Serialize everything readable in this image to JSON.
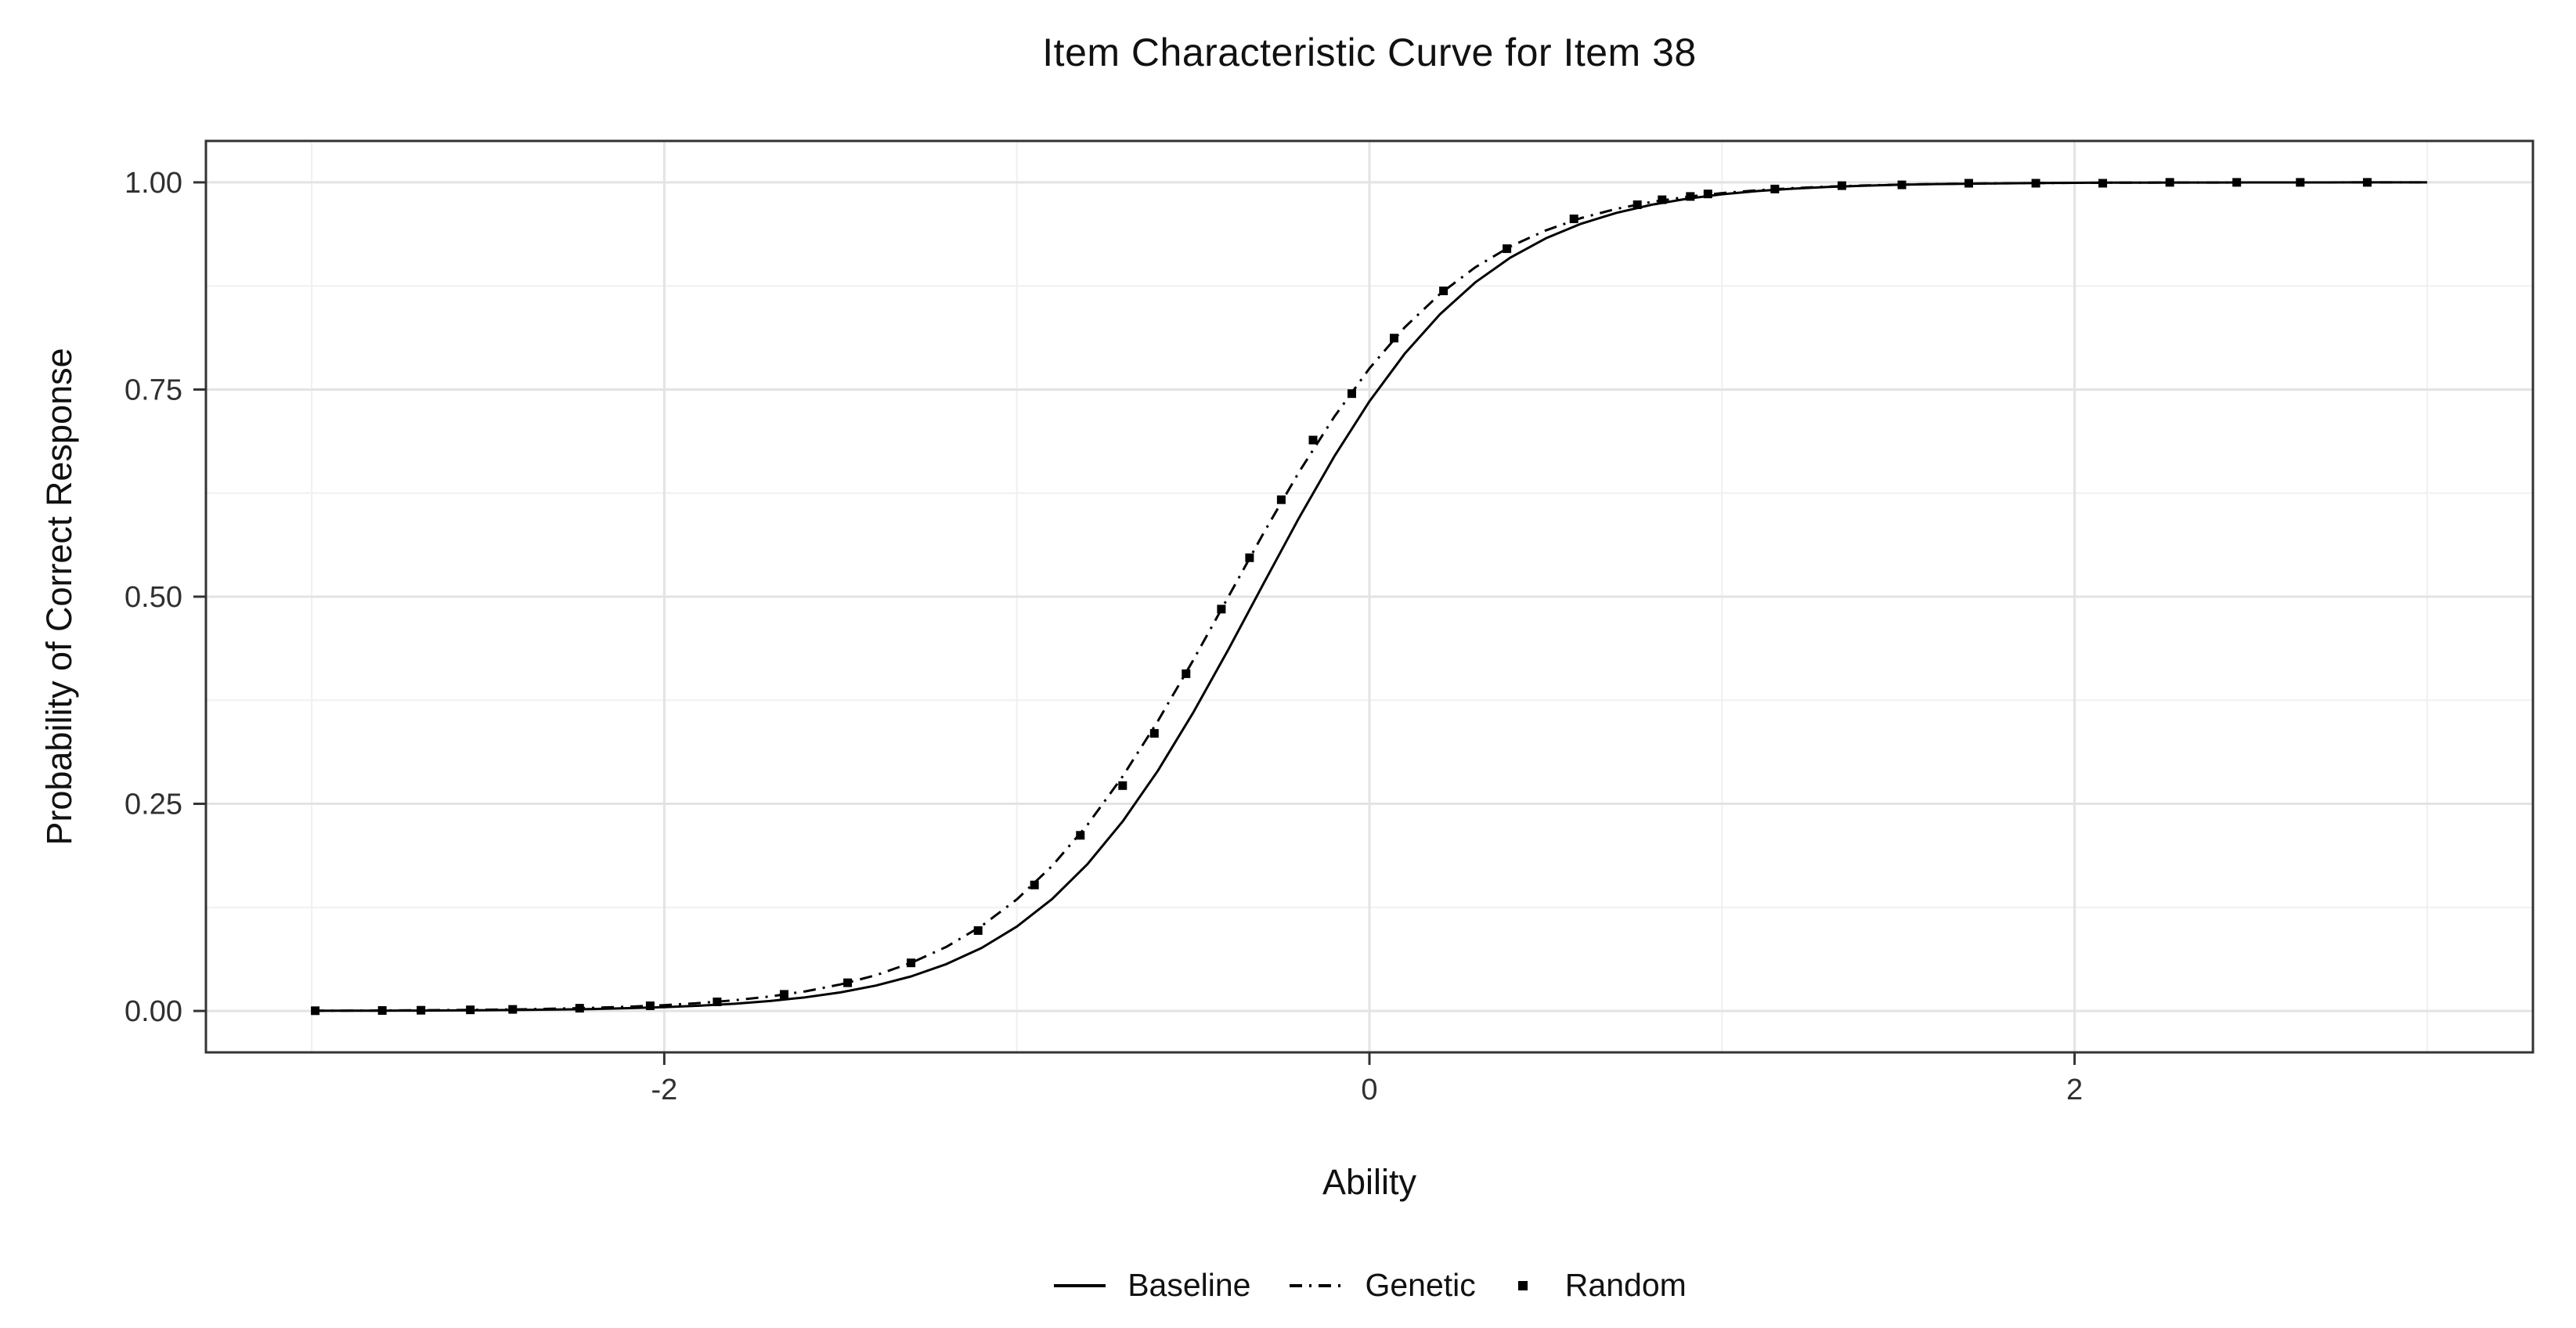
{
  "page": {
    "background": "#ffffff"
  },
  "chart_data": {
    "type": "line",
    "title": "Item Characteristic Curve for Item 38",
    "xlabel": "Ability",
    "ylabel": "Probability of Correct Response",
    "xlim": [
      -3.3,
      3.3
    ],
    "ylim": [
      -0.05,
      1.05
    ],
    "x_major_ticks": [
      -2,
      0,
      2
    ],
    "x_tick_labels": [
      "-2",
      "0",
      "2"
    ],
    "x_minor_gridlines": [
      -3,
      -1,
      1,
      3
    ],
    "y_major_ticks": [
      0,
      0.25,
      0.5,
      0.75,
      1
    ],
    "y_tick_labels": [
      "0.00",
      "0.25",
      "0.50",
      "0.75",
      "1.00"
    ],
    "y_minor_gridlines": [
      0.125,
      0.375,
      0.625,
      0.875
    ],
    "grid": "major+minor",
    "legend_position": "bottom",
    "colors": {
      "series": "#000000",
      "panel_border": "#333333",
      "grid_major": "#e3e3e3",
      "grid_minor": "#f0f0f0",
      "tick_mark": "#333333",
      "tick_text": "#303030",
      "title_text": "#111111"
    },
    "series": [
      {
        "name": "Baseline",
        "type": "line",
        "linestyle": "solid",
        "color": "#000000",
        "x": [
          -3,
          -2.9,
          -2.8,
          -2.7,
          -2.6,
          -2.5,
          -2.4,
          -2.3,
          -2.2,
          -2.1,
          -2,
          -1.9,
          -1.8,
          -1.7,
          -1.6,
          -1.5,
          -1.4,
          -1.3,
          -1.2,
          -1.1,
          -1,
          -0.9,
          -0.8,
          -0.7,
          -0.6,
          -0.5,
          -0.4,
          -0.3,
          -0.2,
          -0.1,
          0,
          0.1,
          0.2,
          0.3,
          0.4,
          0.5,
          0.6,
          0.7,
          0.8,
          0.9,
          1,
          1.1,
          1.2,
          1.3,
          1.4,
          1.5,
          1.6,
          1.7,
          1.8,
          1.9,
          2,
          2.1,
          2.2,
          2.3,
          2.4,
          2.5,
          2.6,
          2.7,
          2.8,
          2.9,
          3
        ],
        "y": [
          0.0002,
          0.0003,
          0.0004,
          0.0005,
          0.0007,
          0.0009,
          0.0013,
          0.0018,
          0.0024,
          0.0034,
          0.0046,
          0.0063,
          0.0087,
          0.012,
          0.0164,
          0.0224,
          0.0306,
          0.0417,
          0.0565,
          0.0761,
          0.1019,
          0.135,
          0.1771,
          0.2287,
          0.2899,
          0.3599,
          0.4363,
          0.516,
          0.5948,
          0.6691,
          0.7357,
          0.7931,
          0.8408,
          0.8792,
          0.9093,
          0.9324,
          0.95,
          0.9632,
          0.973,
          0.9802,
          0.9856,
          0.9895,
          0.9924,
          0.9944,
          0.9959,
          0.9971,
          0.9979,
          0.9984,
          0.9989,
          0.9992,
          0.9994,
          0.9996,
          0.9997,
          0.9998,
          0.9998,
          0.9999,
          0.9999,
          0.9999,
          1,
          1,
          1
        ]
      },
      {
        "name": "Genetic",
        "type": "line",
        "linestyle": "dashdot",
        "color": "#000000",
        "x": [
          -3,
          -2.9,
          -2.8,
          -2.7,
          -2.6,
          -2.5,
          -2.4,
          -2.3,
          -2.2,
          -2.1,
          -2,
          -1.9,
          -1.8,
          -1.7,
          -1.6,
          -1.5,
          -1.4,
          -1.3,
          -1.2,
          -1.1,
          -1,
          -0.9,
          -0.8,
          -0.7,
          -0.6,
          -0.5,
          -0.4,
          -0.3,
          -0.2,
          -0.1,
          0,
          0.1,
          0.2,
          0.3,
          0.4,
          0.5,
          0.6,
          0.7,
          0.8,
          0.9,
          1,
          1.1,
          1.2,
          1.3,
          1.4,
          1.5,
          1.6,
          1.7,
          1.8,
          1.9,
          2,
          2.1,
          2.2,
          2.3,
          2.4,
          2.5,
          2.6,
          2.7,
          2.8,
          2.9,
          3
        ],
        "y": [
          0.0003,
          0.0004,
          0.0006,
          0.0008,
          0.0011,
          0.0015,
          0.002,
          0.0028,
          0.0038,
          0.0051,
          0.007,
          0.0095,
          0.0129,
          0.0175,
          0.0236,
          0.032,
          0.0431,
          0.058,
          0.0773,
          0.1025,
          0.1347,
          0.175,
          0.2245,
          0.283,
          0.3498,
          0.4231,
          0.5,
          0.5769,
          0.6502,
          0.717,
          0.7755,
          0.825,
          0.8653,
          0.8975,
          0.9227,
          0.942,
          0.9569,
          0.968,
          0.9764,
          0.9825,
          0.9871,
          0.9905,
          0.993,
          0.9949,
          0.9962,
          0.9972,
          0.998,
          0.9985,
          0.9989,
          0.9992,
          0.9994,
          0.9996,
          0.9997,
          0.9998,
          0.9998,
          0.9999,
          0.9999,
          0.9999,
          1,
          1,
          1
        ]
      },
      {
        "name": "Random",
        "type": "points",
        "marker": "square",
        "color": "#000000",
        "x": [
          -2.99,
          -2.8,
          -2.69,
          -2.55,
          -2.43,
          -2.24,
          -2.04,
          -1.85,
          -1.66,
          -1.48,
          -1.3,
          -1.11,
          -0.95,
          -0.82,
          -0.7,
          -0.61,
          -0.52,
          -0.42,
          -0.34,
          -0.25,
          -0.16,
          -0.05,
          0.07,
          0.21,
          0.39,
          0.58,
          0.76,
          0.83,
          0.91,
          0.96,
          1.15,
          1.34,
          1.51,
          1.7,
          1.89,
          2.08,
          2.27,
          2.46,
          2.64,
          2.83
        ],
        "y": [
          0.0003,
          0.0006,
          0.0008,
          0.0013,
          0.0019,
          0.0033,
          0.0062,
          0.011,
          0.02,
          0.034,
          0.058,
          0.097,
          0.152,
          0.212,
          0.272,
          0.335,
          0.407,
          0.485,
          0.547,
          0.617,
          0.689,
          0.745,
          0.812,
          0.869,
          0.92,
          0.956,
          0.973,
          0.979,
          0.983,
          0.986,
          0.992,
          0.996,
          0.997,
          0.999,
          0.999,
          0.999,
          1,
          1,
          1,
          1
        ]
      }
    ]
  }
}
